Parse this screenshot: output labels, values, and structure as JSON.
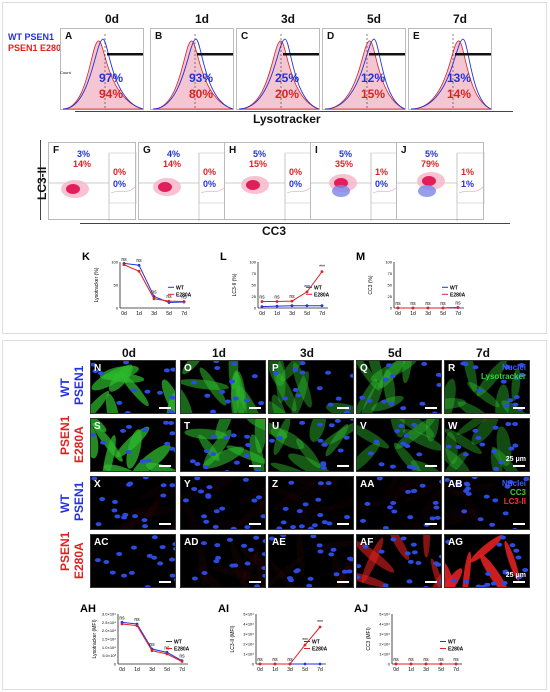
{
  "legend": {
    "wt": "WT PSEN1",
    "mut": "PSEN1 E280A"
  },
  "days": [
    "0d",
    "1d",
    "3d",
    "5d",
    "7d"
  ],
  "hist_panels": [
    {
      "letter": "A",
      "wt": "97%",
      "mut": "94%"
    },
    {
      "letter": "B",
      "wt": "93%",
      "mut": "80%"
    },
    {
      "letter": "C",
      "wt": "25%",
      "mut": "20%"
    },
    {
      "letter": "D",
      "wt": "12%",
      "mut": "15%"
    },
    {
      "letter": "E",
      "wt": "13%",
      "mut": "14%"
    }
  ],
  "hist_ylabel": "Count",
  "hist_xlabel": "Lysotracker",
  "flow_panels": [
    {
      "letter": "F",
      "q1_wt": "3%",
      "q1_mut": "14%",
      "q2_mut": "0%",
      "q3_wt": "0%"
    },
    {
      "letter": "G",
      "q1_wt": "4%",
      "q1_mut": "14%",
      "q2_mut": "0%",
      "q3_wt": "0%"
    },
    {
      "letter": "H",
      "q1_wt": "5%",
      "q1_mut": "15%",
      "q2_mut": "0%",
      "q3_wt": "0%"
    },
    {
      "letter": "I",
      "q1_wt": "5%",
      "q1_mut": "35%",
      "q2_mut": "1%",
      "q3_wt": "0%"
    },
    {
      "letter": "J",
      "q1_wt": "5%",
      "q1_mut": "79%",
      "q2_mut": "1%",
      "q3_wt": "1%"
    }
  ],
  "flow_ylabel": "LC3-II",
  "flow_xlabel": "CC3",
  "ns": "ns",
  "stars": "***",
  "small_charts_top": [
    {
      "letter": "K",
      "ylabel": "Lysotracker (%)",
      "yticks": [
        "100",
        "50",
        "0"
      ],
      "ylim": [
        0,
        100
      ],
      "x": [
        "0d",
        "1d",
        "3d",
        "5d",
        "7d"
      ],
      "series": [
        {
          "name": "WT",
          "values": [
            97,
            93,
            25,
            12,
            13
          ]
        },
        {
          "name": "E280A",
          "values": [
            94,
            80,
            20,
            15,
            14
          ]
        }
      ],
      "sig": [
        "ns",
        "ns",
        "ns",
        "ns",
        "ns"
      ]
    },
    {
      "letter": "L",
      "ylabel": "LC3-II (%)",
      "yticks": [
        "100",
        "75",
        "50",
        "25",
        "0"
      ],
      "ylim": [
        0,
        100
      ],
      "x": [
        "0d",
        "1d",
        "3d",
        "5d",
        "7d"
      ],
      "series": [
        {
          "name": "WT",
          "values": [
            3,
            4,
            5,
            5,
            5
          ]
        },
        {
          "name": "E280A",
          "values": [
            14,
            14,
            15,
            35,
            79
          ]
        }
      ],
      "sig": [
        "ns",
        "ns",
        "ns",
        "***",
        "***"
      ]
    },
    {
      "letter": "M",
      "ylabel": "CC3 (%)",
      "yticks": [
        "100",
        "75",
        "50",
        "25",
        "0"
      ],
      "ylim": [
        0,
        100
      ],
      "x": [
        "0d",
        "1d",
        "3d",
        "5d",
        "7d"
      ],
      "series": [
        {
          "name": "WT",
          "values": [
            0,
            0,
            0,
            0,
            1
          ]
        },
        {
          "name": "E280A",
          "values": [
            0,
            0,
            0,
            0,
            1
          ]
        }
      ],
      "sig": [
        "ns",
        "ns",
        "ns",
        "ns",
        "ns"
      ]
    }
  ],
  "micro": {
    "days": [
      "0d",
      "1d",
      "3d",
      "5d",
      "7d"
    ],
    "row_labels": [
      [
        "WT",
        "PSEN1"
      ],
      [
        "PSEN1",
        "E280A"
      ],
      [
        "WT",
        "PSEN1"
      ],
      [
        "PSEN1",
        "E280A"
      ]
    ],
    "rows": [
      [
        "N",
        "O",
        "P",
        "Q",
        "R"
      ],
      [
        "S",
        "T",
        "U",
        "V",
        "W"
      ],
      [
        "X",
        "Y",
        "Z",
        "AA",
        "AB"
      ],
      [
        "AC",
        "AD",
        "AE",
        "AF",
        "AG"
      ]
    ],
    "legend1": [
      "Nuclei",
      "Lysotracker"
    ],
    "legend2": [
      "Nuclei",
      "CC3",
      "LC3-II"
    ],
    "scale": "25 μm",
    "lc3_intensity": [
      0,
      0.05,
      0.05,
      0.6,
      0.9
    ]
  },
  "small_charts_bottom": [
    {
      "letter": "AH",
      "ylabel": "Lysotracker (MFI)",
      "yticks": [
        "3.0×10⁴",
        "2.5×10⁴",
        "2.0×10⁴",
        "1.5×10⁴",
        "1.0×10⁴",
        "5.0×10³",
        "0"
      ],
      "ylim": [
        0,
        30000
      ],
      "x": [
        "0d",
        "1d",
        "3d",
        "5d",
        "7d"
      ],
      "series": [
        {
          "name": "WT",
          "values": [
            25000,
            24000,
            9000,
            7000,
            2000
          ]
        },
        {
          "name": "E280A",
          "values": [
            24000,
            23000,
            8000,
            6000,
            1500
          ]
        }
      ],
      "sig": [
        "ns",
        "ns",
        "ns",
        "ns",
        "ns"
      ]
    },
    {
      "letter": "AI",
      "ylabel": "LC3-II (MFI)",
      "yticks": [
        "5×10⁴",
        "4×10⁴",
        "3×10⁴",
        "2×10⁴",
        "1×10⁴",
        "0"
      ],
      "ylim": [
        0,
        50000
      ],
      "x": [
        "0d",
        "1d",
        "3d",
        "5d",
        "7d"
      ],
      "series": [
        {
          "name": "WT",
          "values": [
            0,
            0,
            0,
            0,
            0
          ]
        },
        {
          "name": "E280A",
          "values": [
            0,
            0,
            0,
            19000,
            37000
          ]
        }
      ],
      "sig": [
        "ns",
        "ns",
        "ns",
        "***",
        "***"
      ]
    },
    {
      "letter": "AJ",
      "ylabel": "CC3 (MFI)",
      "yticks": [
        "5×10⁴",
        "4×10⁴",
        "3×10⁴",
        "2×10⁴",
        "1×10⁴",
        "0"
      ],
      "ylim": [
        0,
        50000
      ],
      "x": [
        "0d",
        "1d",
        "3d",
        "5d",
        "7d"
      ],
      "series": [
        {
          "name": "WT",
          "values": [
            0,
            0,
            0,
            0,
            0
          ]
        },
        {
          "name": "E280A",
          "values": [
            0,
            0,
            0,
            0,
            0
          ]
        }
      ],
      "sig": [
        "ns",
        "ns",
        "ns",
        "ns",
        "ns"
      ]
    }
  ],
  "colors": {
    "wt": "#2233dd",
    "mut": "#dd2222"
  }
}
